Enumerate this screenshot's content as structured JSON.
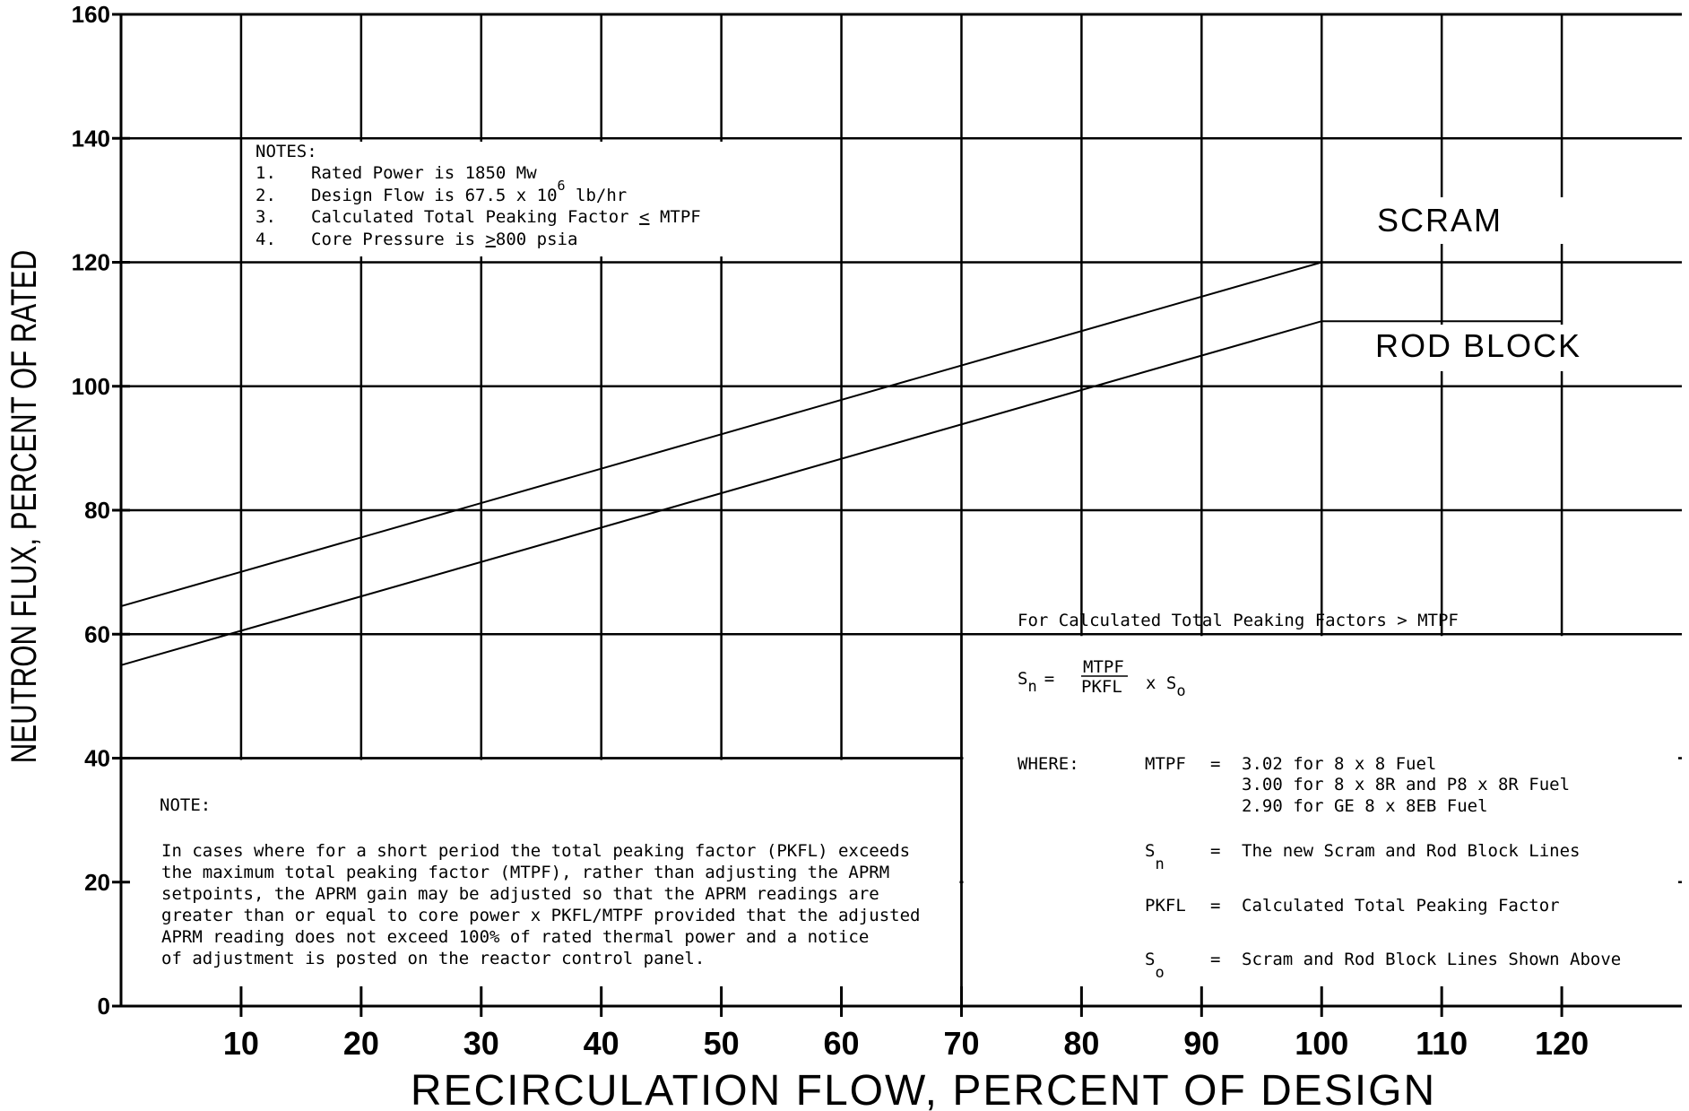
{
  "chart_data": {
    "type": "line",
    "xlabel": "RECIRCULATION FLOW, PERCENT OF DESIGN",
    "ylabel": "NEUTRON FLUX, PERCENT OF RATED",
    "xlim": [
      0,
      130
    ],
    "ylim": [
      0,
      160
    ],
    "x_ticks": [
      10,
      20,
      30,
      40,
      50,
      60,
      70,
      80,
      90,
      100,
      110,
      120
    ],
    "y_ticks": [
      0,
      20,
      40,
      60,
      80,
      100,
      120,
      140,
      160
    ],
    "grid": true,
    "series": [
      {
        "name": "SCRAM",
        "x": [
          0,
          100,
          120
        ],
        "y": [
          64.5,
          120,
          120
        ]
      },
      {
        "name": "ROD BLOCK",
        "x": [
          0,
          100,
          120
        ],
        "y": [
          55,
          110.5,
          110.5
        ]
      }
    ],
    "notes_box": {
      "heading": "NOTES:",
      "items": [
        {
          "num": "1.",
          "text": "Rated Power is 1850 Mw"
        },
        {
          "num": "2.",
          "text": "Design Flow is 67.5 x 10",
          "sup": "6",
          "text_after": " lb/hr"
        },
        {
          "num": "3.",
          "text": "Calculated Total Peaking Factor ",
          "sym": "<",
          "text_after": " MTPF"
        },
        {
          "num": "4.",
          "text": "Core Pressure is ",
          "sym": ">",
          "text_after": "800 psia"
        }
      ]
    },
    "note_box": {
      "heading": "NOTE:",
      "lines": [
        "In cases where for a short period the total peaking factor (PKFL) exceeds",
        "the maximum total peaking factor (MTPF), rather than adjusting the APRM",
        "setpoints, the APRM gain may be adjusted so that the APRM readings are",
        "greater than or equal to core power x PKFL/MTPF provided that the adjusted",
        "APRM reading does not exceed 100% of rated thermal power and a notice",
        "of adjustment is posted on the reactor control panel."
      ]
    },
    "formula_box": {
      "title": "For Calculated Total Peaking Factors > MTPF",
      "formula": {
        "lhs": "S",
        "lhs_sub": "n",
        "eq": "=",
        "num": "MTPF",
        "den": "PKFL",
        "times": "x S",
        "times_sub": "o"
      },
      "where_label": "WHERE:",
      "defs": [
        {
          "sym": "MTPF",
          "eq": "=",
          "lines": [
            "3.02 for 8 x 8 Fuel",
            "3.00 for 8 x 8R and P8 x 8R Fuel",
            "2.90 for GE 8 x 8EB Fuel"
          ]
        },
        {
          "sym": "S",
          "sub": "n",
          "eq": "=",
          "lines": [
            "The new Scram and Rod Block Lines"
          ]
        },
        {
          "sym": "PKFL",
          "eq": "=",
          "lines": [
            "Calculated Total Peaking Factor"
          ]
        },
        {
          "sym": "S",
          "sub": "o",
          "eq": "=",
          "lines": [
            "Scram and Rod Block Lines Shown Above"
          ]
        }
      ]
    }
  }
}
